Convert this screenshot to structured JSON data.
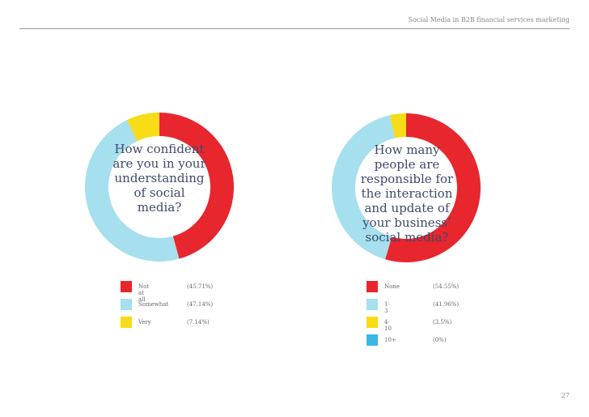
{
  "header": {
    "title": "Social Media in B2B financial services marketing"
  },
  "page_number": "27",
  "colors": {
    "red": "#e8262e",
    "light_blue": "#a6dfee",
    "yellow": "#f7dc17",
    "blue": "#3cb6e4"
  },
  "chart_data": [
    {
      "type": "pie",
      "question": "How confident are you in your understanding of social media?",
      "slices": [
        {
          "label": "Not at all",
          "value": 45.71,
          "value_text": "(45.71%)",
          "color": "#e8262e"
        },
        {
          "label": "Somewhat",
          "value": 47.14,
          "value_text": "(47.14%)",
          "color": "#a6dfee"
        },
        {
          "label": "Very",
          "value": 7.14,
          "value_text": "(7.14%)",
          "color": "#f7dc17"
        }
      ]
    },
    {
      "type": "pie",
      "question": "How many people are responsible for the interaction and update of your business’ social media?",
      "slices": [
        {
          "label": "None",
          "value": 54.55,
          "value_text": "(54.55%)",
          "color": "#e8262e"
        },
        {
          "label": "1-3",
          "value": 41.96,
          "value_text": "(41.96%)",
          "color": "#a6dfee"
        },
        {
          "label": "4-10",
          "value": 3.5,
          "value_text": "(3.5%)",
          "color": "#f7dc17"
        },
        {
          "label": "10+",
          "value": 0,
          "value_text": "(0%)",
          "color": "#3cb6e4"
        }
      ]
    }
  ]
}
